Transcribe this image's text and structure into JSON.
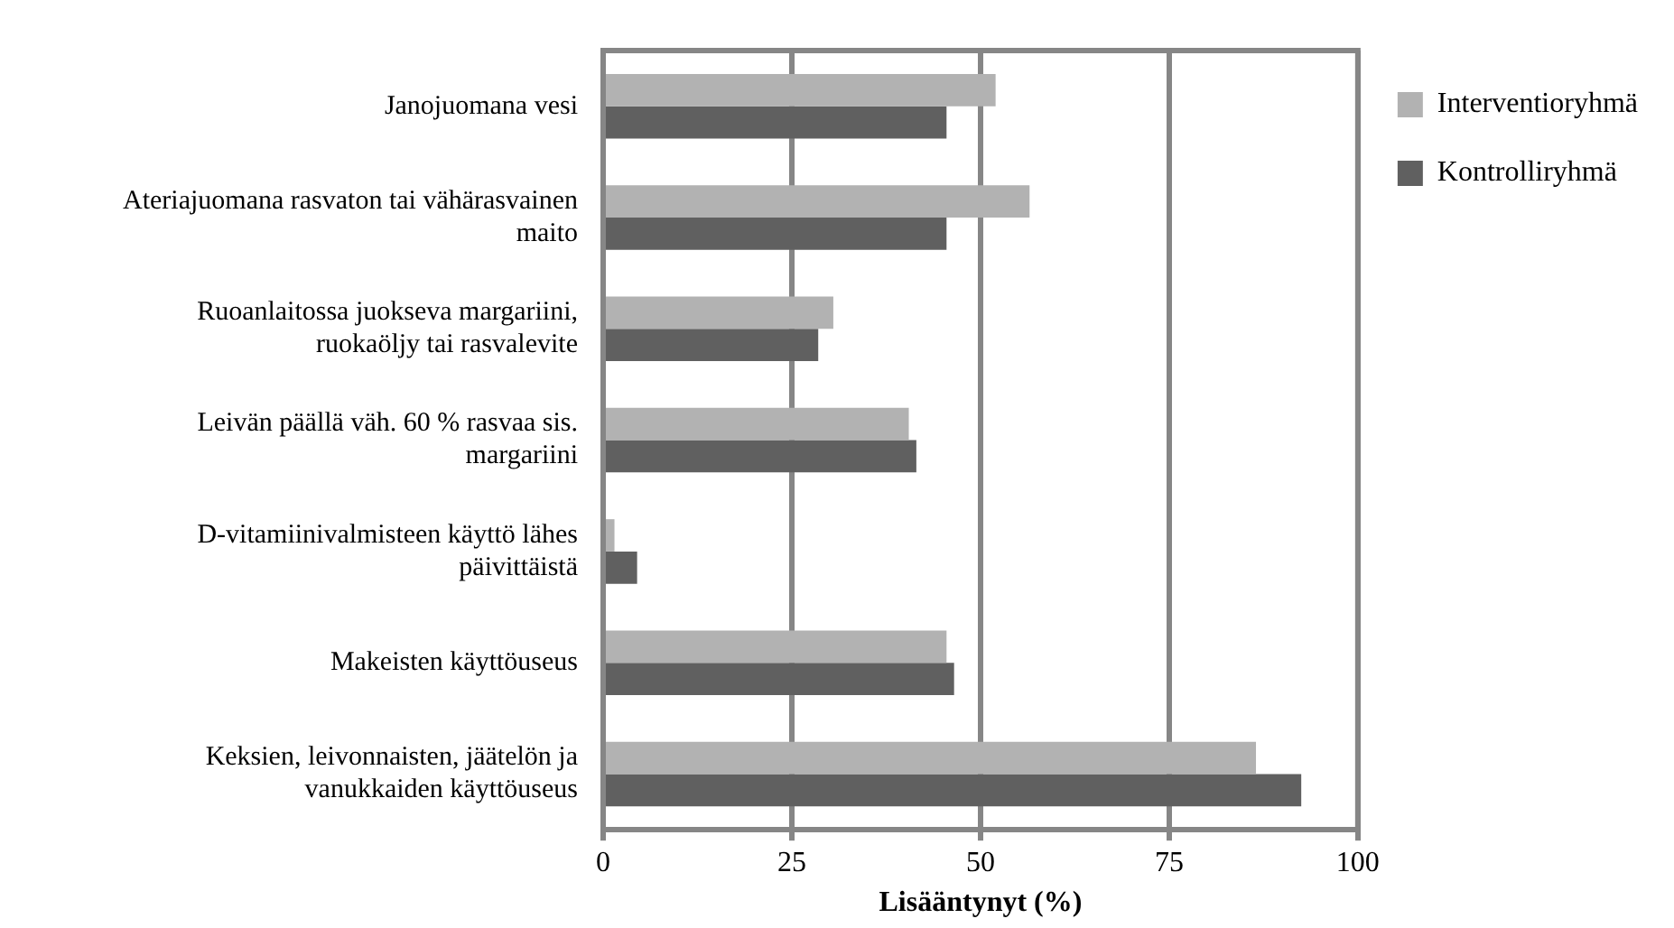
{
  "chart_data": {
    "type": "bar",
    "orientation": "horizontal",
    "xlabel": "Lisääntynyt (%)",
    "categories": [
      "Janojuomana vesi",
      "Ateriajuomana rasvaton tai vähärasvainen maito",
      "Ruoanlaitossa juokseva margariini, ruokaöljy tai rasvalevite",
      "Leivän päällä väh. 60 % rasvaa sis. margariini",
      "D-vitamiinivalmisteen käyttö lähes päivittäistä",
      "Makeisten käyttöuseus",
      "Keksien, leivonnaisten, jäätelön ja vanukkaiden käyttöuseus"
    ],
    "series": [
      {
        "name": "Interventioryhmä",
        "color": "#b2b2b2",
        "values": [
          52,
          56.5,
          30.5,
          40.5,
          1.5,
          45.5,
          86.5
        ]
      },
      {
        "name": "Kontrolliryhmä",
        "color": "#606060",
        "values": [
          45.5,
          45.5,
          28.5,
          41.5,
          4.5,
          46.5,
          92.5
        ]
      }
    ],
    "xlim": [
      0,
      100
    ],
    "xticks": [
      0,
      25,
      50,
      75,
      100
    ],
    "grid": "x",
    "legend": "top right"
  }
}
